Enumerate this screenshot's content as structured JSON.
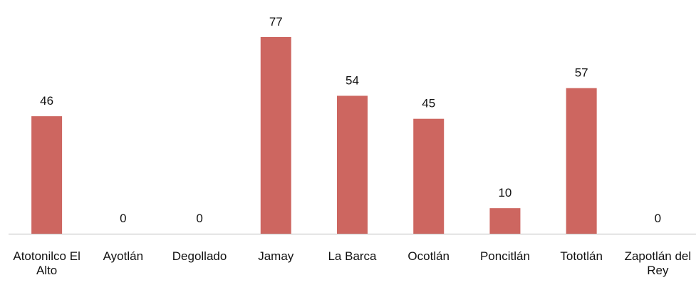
{
  "chart_data": {
    "type": "bar",
    "categories": [
      "Atotonilco El Alto",
      "Ayotlán",
      "Degollado",
      "Jamay",
      "La Barca",
      "Ocotlán",
      "Poncitlán",
      "Tototlán",
      "Zapotlán del Rey"
    ],
    "values": [
      46,
      0,
      0,
      77,
      54,
      45,
      10,
      57,
      0
    ],
    "color": "#cd6660"
  }
}
